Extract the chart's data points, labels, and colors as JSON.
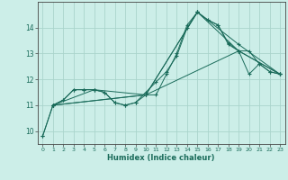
{
  "xlabel": "Humidex (Indice chaleur)",
  "bg_color": "#cceee8",
  "grid_color": "#aad4cc",
  "line_color": "#1a6b5a",
  "xlim": [
    -0.5,
    23.5
  ],
  "ylim": [
    9.5,
    15.0
  ],
  "yticks": [
    10,
    11,
    12,
    13,
    14
  ],
  "xticks": [
    0,
    1,
    2,
    3,
    4,
    5,
    6,
    7,
    8,
    9,
    10,
    11,
    12,
    13,
    14,
    15,
    16,
    17,
    18,
    19,
    20,
    21,
    22,
    23
  ],
  "series1_x": [
    0,
    1,
    2,
    3,
    4,
    5,
    6,
    7,
    8,
    9,
    10,
    11,
    12,
    13,
    14,
    15,
    16,
    17,
    18,
    19,
    20,
    21,
    22,
    23
  ],
  "series1_y": [
    9.8,
    11.0,
    11.2,
    11.6,
    11.6,
    11.6,
    11.5,
    11.1,
    11.0,
    11.1,
    11.4,
    11.4,
    12.2,
    13.0,
    14.1,
    14.6,
    14.3,
    14.1,
    13.4,
    13.1,
    12.2,
    12.6,
    12.3,
    12.2
  ],
  "series2_x": [
    0,
    1,
    2,
    3,
    4,
    5,
    6,
    7,
    8,
    9,
    10,
    11,
    12,
    13,
    14,
    15,
    16,
    17,
    18,
    19,
    20,
    21,
    22,
    23
  ],
  "series2_y": [
    9.8,
    11.0,
    11.2,
    11.6,
    11.6,
    11.6,
    11.5,
    11.1,
    11.0,
    11.1,
    11.5,
    11.9,
    12.3,
    12.9,
    14.0,
    14.6,
    14.3,
    14.1,
    13.35,
    13.1,
    13.1,
    12.6,
    12.3,
    12.2
  ],
  "series3_x": [
    1,
    5,
    10,
    15,
    19,
    23
  ],
  "series3_y": [
    11.0,
    11.6,
    11.4,
    14.6,
    13.1,
    12.2
  ],
  "series4_x": [
    1,
    10,
    15,
    19,
    23
  ],
  "series4_y": [
    11.0,
    11.4,
    14.6,
    13.35,
    12.2
  ],
  "series5_x": [
    1,
    10,
    19,
    23
  ],
  "series5_y": [
    11.0,
    11.4,
    13.1,
    12.2
  ]
}
